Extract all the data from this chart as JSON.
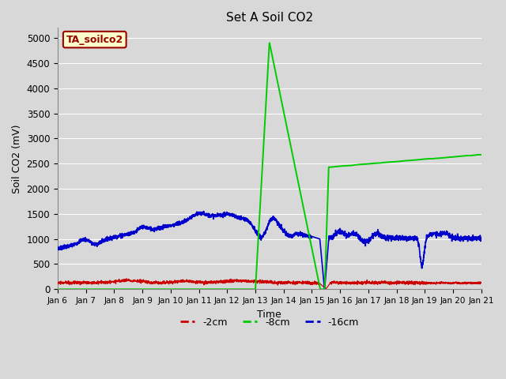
{
  "title": "Set A Soil CO2",
  "xlabel": "Time",
  "ylabel": "Soil CO2 (mV)",
  "xlim_days": [
    6,
    21
  ],
  "ylim": [
    0,
    5200
  ],
  "yticks": [
    0,
    500,
    1000,
    1500,
    2000,
    2500,
    3000,
    3500,
    4000,
    4500,
    5000
  ],
  "xtick_labels": [
    "Jan 6",
    "Jan 7",
    "Jan 8",
    "Jan 9",
    "Jan 10",
    "Jan 11",
    "Jan 12",
    "Jan 13",
    "Jan 14",
    "Jan 15",
    "Jan 16",
    "Jan 17",
    "Jan 18",
    "Jan 19",
    "Jan 20",
    "Jan 21"
  ],
  "fig_bg_color": "#d8d8d8",
  "plot_bg_color": "#d8d8d8",
  "grid_color": "#ffffff",
  "line_2cm_color": "#cc0000",
  "line_8cm_color": "#00cc00",
  "line_16cm_color": "#0000cc",
  "annotation_text": "TA_soilco2",
  "annotation_bg": "#ffffcc",
  "annotation_fg": "#990000",
  "legend_labels": [
    "-2cm",
    "-8cm",
    "-16cm"
  ]
}
